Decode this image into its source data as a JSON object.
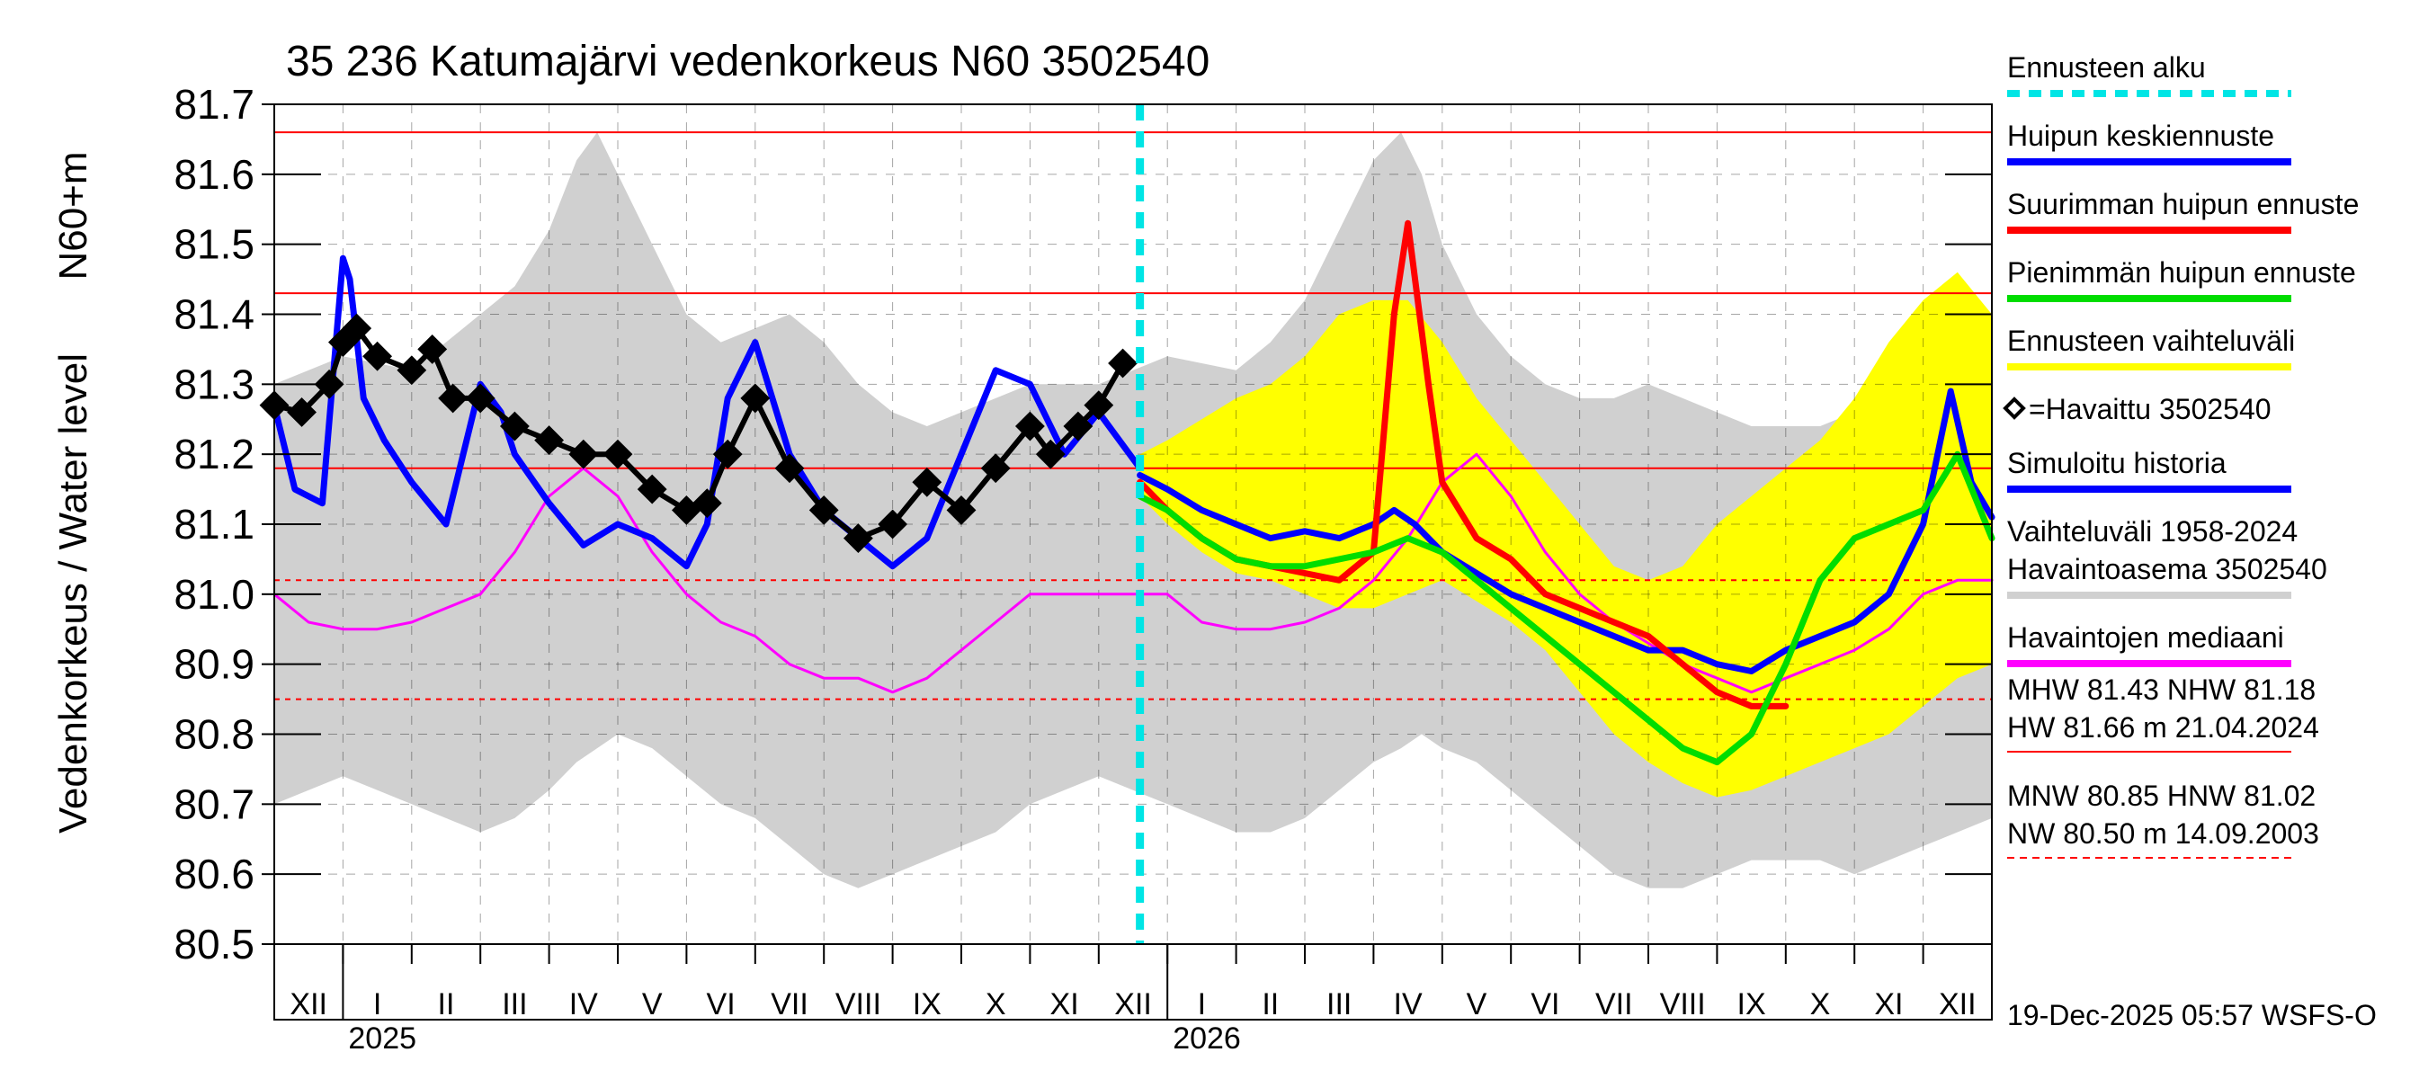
{
  "chart_data": {
    "type": "line",
    "title": "35 236 Katumajärvi vedenkorkeus N60 3502540",
    "ylabel": "Vedenkorkeus / Water level",
    "yunit": "N60+m",
    "ylim": [
      80.5,
      81.7
    ],
    "yticks": [
      "80.5",
      "80.6",
      "80.7",
      "80.8",
      "80.9",
      "81.0",
      "81.1",
      "81.2",
      "81.3",
      "81.4",
      "81.5",
      "81.6",
      "81.7"
    ],
    "x_range_months": [
      0,
      25
    ],
    "month_labels": [
      "XII",
      "I",
      "II",
      "III",
      "IV",
      "V",
      "VI",
      "VII",
      "VIII",
      "IX",
      "X",
      "XI",
      "XII",
      "I",
      "II",
      "III",
      "IV",
      "V",
      "VI",
      "VII",
      "VIII",
      "IX",
      "X",
      "XI",
      "XII"
    ],
    "years": [
      {
        "label": "2025",
        "month_index": 1
      },
      {
        "label": "2026",
        "month_index": 13
      }
    ],
    "forecast_start_month": 12.6,
    "reference_lines": [
      {
        "name": "HW",
        "value": 81.66,
        "style": "solid"
      },
      {
        "name": "MHW",
        "value": 81.43,
        "style": "solid"
      },
      {
        "name": "NHW",
        "value": 81.18,
        "style": "solid"
      },
      {
        "name": "HNW",
        "value": 81.02,
        "style": "dashed"
      },
      {
        "name": "MNW",
        "value": 80.85,
        "style": "dashed"
      },
      {
        "name": "NW",
        "value": 80.5,
        "style": "dashed"
      }
    ],
    "series": [
      {
        "name": "Vaihteluväli 1958-2024",
        "kind": "band",
        "color": "#d0d0d0",
        "x": [
          0,
          0.5,
          1,
          1.5,
          2,
          2.5,
          3,
          3.5,
          4,
          4.4,
          4.7,
          5,
          5.5,
          6,
          6.5,
          7,
          7.5,
          8,
          8.5,
          9,
          9.5,
          10,
          10.5,
          11,
          11.5,
          12,
          12.5,
          13,
          13.5,
          14,
          14.5,
          15,
          15.5,
          16,
          16.4,
          16.7,
          17,
          17.5,
          18,
          18.5,
          19,
          19.5,
          20,
          20.5,
          21,
          21.5,
          22,
          22.5,
          23,
          23.5,
          24,
          24.5,
          25
        ],
        "low": [
          80.7,
          80.72,
          80.74,
          80.72,
          80.7,
          80.68,
          80.66,
          80.68,
          80.72,
          80.76,
          80.78,
          80.8,
          80.78,
          80.74,
          80.7,
          80.68,
          80.64,
          80.6,
          80.58,
          80.6,
          80.62,
          80.64,
          80.66,
          80.7,
          80.72,
          80.74,
          80.72,
          80.7,
          80.68,
          80.66,
          80.66,
          80.68,
          80.72,
          80.76,
          80.78,
          80.8,
          80.78,
          80.76,
          80.72,
          80.68,
          80.64,
          80.6,
          80.58,
          80.58,
          80.6,
          80.62,
          80.62,
          80.62,
          80.6,
          80.62,
          80.64,
          80.66,
          80.68
        ],
        "high": [
          81.3,
          81.32,
          81.34,
          81.33,
          81.32,
          81.36,
          81.4,
          81.44,
          81.52,
          81.62,
          81.66,
          81.6,
          81.5,
          81.4,
          81.36,
          81.38,
          81.4,
          81.36,
          81.3,
          81.26,
          81.24,
          81.26,
          81.28,
          81.3,
          81.3,
          81.3,
          81.32,
          81.34,
          81.33,
          81.32,
          81.36,
          81.42,
          81.52,
          81.62,
          81.66,
          81.6,
          81.5,
          81.4,
          81.34,
          81.3,
          81.28,
          81.28,
          81.3,
          81.28,
          81.26,
          81.24,
          81.24,
          81.24,
          81.26,
          81.3,
          81.34,
          81.38,
          81.38
        ]
      },
      {
        "name": "Ennusteen vaihteluväli",
        "kind": "band",
        "color": "#ffff00",
        "x": [
          12.6,
          13,
          13.5,
          14,
          14.5,
          15,
          15.5,
          16,
          16.5,
          17,
          17.5,
          18,
          18.5,
          19,
          19.5,
          20,
          20.5,
          21,
          21.5,
          22,
          22.5,
          23,
          23.5,
          24,
          24.5,
          25
        ],
        "low": [
          81.14,
          81.1,
          81.06,
          81.03,
          81.02,
          81.0,
          80.98,
          80.98,
          81.0,
          81.02,
          80.99,
          80.96,
          80.92,
          80.86,
          80.8,
          80.76,
          80.73,
          80.71,
          80.72,
          80.74,
          80.76,
          80.78,
          80.8,
          80.84,
          80.88,
          80.9
        ],
        "high": [
          81.2,
          81.22,
          81.25,
          81.28,
          81.3,
          81.34,
          81.4,
          81.42,
          81.42,
          81.36,
          81.28,
          81.22,
          81.16,
          81.1,
          81.04,
          81.02,
          81.04,
          81.1,
          81.14,
          81.18,
          81.22,
          81.28,
          81.36,
          81.42,
          81.46,
          81.4
        ]
      },
      {
        "name": "Havaintojen mediaani",
        "kind": "line",
        "color": "#ff00ff",
        "x": [
          0,
          0.5,
          1,
          1.5,
          2,
          2.5,
          3,
          3.5,
          4,
          4.5,
          5,
          5.5,
          6,
          6.5,
          7,
          7.5,
          8,
          8.5,
          9,
          9.5,
          10,
          10.5,
          11,
          11.5,
          12,
          12.5,
          13,
          13.5,
          14,
          14.5,
          15,
          15.5,
          16,
          16.5,
          17,
          17.5,
          18,
          18.5,
          19,
          19.5,
          20,
          20.5,
          21,
          21.5,
          22,
          22.5,
          23,
          23.5,
          24,
          24.5,
          25
        ],
        "y": [
          81.0,
          80.96,
          80.95,
          80.95,
          80.96,
          80.98,
          81.0,
          81.06,
          81.14,
          81.18,
          81.14,
          81.06,
          81.0,
          80.96,
          80.94,
          80.9,
          80.88,
          80.88,
          80.86,
          80.88,
          80.92,
          80.96,
          81.0,
          81.0,
          81.0,
          81.0,
          81.0,
          80.96,
          80.95,
          80.95,
          80.96,
          80.98,
          81.02,
          81.08,
          81.16,
          81.2,
          81.14,
          81.06,
          81.0,
          80.96,
          80.93,
          80.9,
          80.88,
          80.86,
          80.88,
          80.9,
          80.92,
          80.95,
          81.0,
          81.02,
          81.02
        ]
      },
      {
        "name": "Simuloitu historia",
        "kind": "line",
        "color": "#0000ff",
        "x": [
          0,
          0.3,
          0.7,
          1,
          1.1,
          1.3,
          1.6,
          2,
          2.5,
          3,
          3.3,
          3.5,
          4,
          4.5,
          5,
          5.5,
          6,
          6.3,
          6.6,
          7,
          7.5,
          8,
          8.5,
          9,
          9.5,
          10,
          10.5,
          11,
          11.5,
          12,
          12.6
        ],
        "y": [
          81.27,
          81.15,
          81.13,
          81.48,
          81.45,
          81.28,
          81.22,
          81.16,
          81.1,
          81.3,
          81.26,
          81.2,
          81.13,
          81.07,
          81.1,
          81.08,
          81.04,
          81.1,
          81.28,
          81.36,
          81.2,
          81.12,
          81.08,
          81.04,
          81.08,
          81.2,
          81.32,
          81.3,
          81.2,
          81.26,
          81.18
        ]
      },
      {
        "name": "Havaittu 3502540",
        "kind": "markers",
        "color": "#000000",
        "x": [
          0,
          0.4,
          0.8,
          1,
          1.2,
          1.5,
          2,
          2.3,
          2.6,
          3,
          3.5,
          4,
          4.5,
          5,
          5.5,
          6,
          6.3,
          6.6,
          7,
          7.5,
          8,
          8.5,
          9,
          9.5,
          10,
          10.5,
          11,
          11.3,
          11.7,
          12,
          12.35
        ],
        "y": [
          81.27,
          81.26,
          81.3,
          81.36,
          81.38,
          81.34,
          81.32,
          81.35,
          81.28,
          81.28,
          81.24,
          81.22,
          81.2,
          81.2,
          81.15,
          81.12,
          81.13,
          81.2,
          81.28,
          81.18,
          81.12,
          81.08,
          81.1,
          81.16,
          81.12,
          81.18,
          81.24,
          81.2,
          81.24,
          81.27,
          81.33
        ]
      },
      {
        "name": "Huipun keskiennuste",
        "kind": "line",
        "color": "#0000ff",
        "x": [
          12.6,
          13,
          13.5,
          14,
          14.5,
          15,
          15.5,
          16,
          16.3,
          16.6,
          17,
          17.5,
          18,
          18.5,
          19,
          19.5,
          20,
          20.5,
          21,
          21.5,
          22,
          22.5,
          23,
          23.5,
          24,
          24.4,
          24.7,
          25
        ],
        "y": [
          81.17,
          81.15,
          81.12,
          81.1,
          81.08,
          81.09,
          81.08,
          81.1,
          81.12,
          81.1,
          81.06,
          81.03,
          81.0,
          80.98,
          80.96,
          80.94,
          80.92,
          80.92,
          80.9,
          80.89,
          80.92,
          80.94,
          80.96,
          81.0,
          81.1,
          81.29,
          81.16,
          81.11
        ]
      },
      {
        "name": "Suurimman huipun ennuste",
        "kind": "line",
        "color": "#ff0000",
        "x": [
          12.6,
          13,
          13.5,
          14,
          14.5,
          15,
          15.5,
          16,
          16.3,
          16.5,
          16.8,
          17,
          17.5,
          18,
          18.5,
          19,
          19.5,
          20,
          20.5,
          21,
          21.5,
          22
        ],
        "y": [
          81.16,
          81.12,
          81.08,
          81.05,
          81.04,
          81.03,
          81.02,
          81.06,
          81.4,
          81.53,
          81.3,
          81.16,
          81.08,
          81.05,
          81.0,
          80.98,
          80.96,
          80.94,
          80.9,
          80.86,
          80.84,
          80.84
        ]
      },
      {
        "name": "Pienimmän huipun ennuste",
        "kind": "line",
        "color": "#00dd00",
        "x": [
          12.6,
          13,
          13.5,
          14,
          14.5,
          15,
          15.5,
          16,
          16.5,
          17,
          17.5,
          18,
          18.5,
          19,
          19.5,
          20,
          20.5,
          21,
          21.5,
          22,
          22.5,
          23,
          23.5,
          24,
          24.5,
          25
        ],
        "y": [
          81.14,
          81.12,
          81.08,
          81.05,
          81.04,
          81.04,
          81.05,
          81.06,
          81.08,
          81.06,
          81.02,
          80.98,
          80.94,
          80.9,
          80.86,
          80.82,
          80.78,
          80.76,
          80.8,
          80.9,
          81.02,
          81.08,
          81.1,
          81.12,
          81.2,
          81.08
        ]
      }
    ],
    "legend": [
      {
        "label": "Ennusteen alku",
        "color": "#00e5e5",
        "style": "dashed"
      },
      {
        "label": "Huipun keskiennuste",
        "color": "#0000ff",
        "style": "solid"
      },
      {
        "label": "Suurimman huipun ennuste",
        "color": "#ff0000",
        "style": "solid"
      },
      {
        "label": "Pienimmän huipun ennuste",
        "color": "#00dd00",
        "style": "solid"
      },
      {
        "label": "Ennusteen vaihteluväli",
        "color": "#ffff00",
        "style": "solid"
      },
      {
        "label": "=Havaittu 3502540",
        "color": "#000000",
        "style": "marker"
      },
      {
        "label": "Simuloitu historia",
        "color": "#0000ff",
        "style": "solid"
      },
      {
        "label": "Vaihteluväli 1958-2024",
        "color": "#d0d0d0",
        "style": "text"
      },
      {
        "label": "Havaintoasema 3502540",
        "color": "#d0d0d0",
        "style": "solid"
      },
      {
        "label": "Havaintojen mediaani",
        "color": "#ff00ff",
        "style": "solid"
      }
    ],
    "stats": {
      "line1": "MHW  81.43 NHW  81.18",
      "line2": "HW  81.66 m 21.04.2024",
      "line3": "MNW  80.85 HNW  81.02",
      "line4": "NW  80.50 m 14.09.2003"
    },
    "timestamp": "19-Dec-2025 05:57 WSFS-O"
  }
}
